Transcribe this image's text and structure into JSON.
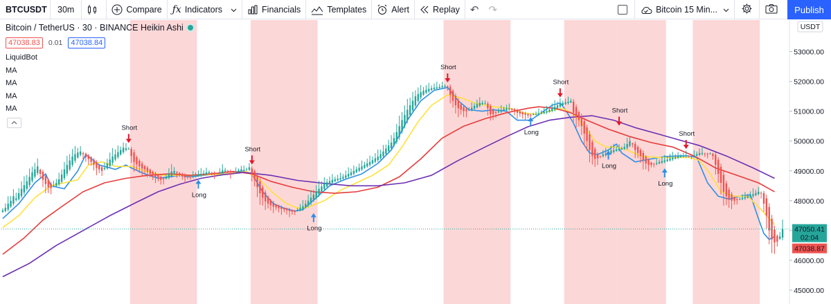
{
  "toolbar": {
    "symbol": "BTCUSDT",
    "interval": "30m",
    "compare_label": "Compare",
    "indicators_label": "Indicators",
    "financials_label": "Financials",
    "templates_label": "Templates",
    "alert_label": "Alert",
    "replay_label": "Replay",
    "layout_name": "Bitcoin 15 Min...",
    "publish_label": "Publish"
  },
  "legend": {
    "title": "Bitcoin / TetherUS · 30 · BINANCE  Heikin Ashi",
    "sell_price": "47038.83",
    "spread": "0.01",
    "buy_price": "47038.84",
    "indicators": [
      "LiquidBot",
      "MA",
      "MA",
      "MA",
      "MA"
    ]
  },
  "colors": {
    "up": "#26a69a",
    "down": "#ef5350",
    "session_shade": "#fcd0d0",
    "ma_fast": "#2e8ee6",
    "ma_mid": "#ffe03a",
    "ma_slow": "#e63b3b",
    "ma_long": "#6b2fb3",
    "long_arrow": "#2e8ee6",
    "short_arrow": "#e0192a"
  },
  "chart_data": {
    "type": "candlestick",
    "title": "Bitcoin / TetherUS · 30 · BINANCE  Heikin Ashi",
    "currency": "USDT",
    "ylim": [
      45000,
      53500
    ],
    "yticks": [
      45000,
      46000,
      47000,
      48000,
      49000,
      50000,
      51000,
      52000,
      53000
    ],
    "grid": false,
    "last_price": "47050.41",
    "countdown": "02:04",
    "marker_price": "47038.87",
    "shaded_sessions": [
      [
        48,
        72
      ],
      [
        93,
        117
      ],
      [
        165,
        189
      ],
      [
        210,
        229
      ],
      [
        230,
        247
      ],
      [
        258,
        282
      ]
    ],
    "ha_closes": [
      47680,
      47760,
      47900,
      48000,
      48150,
      48080,
      48250,
      48400,
      48520,
      48650,
      48800,
      48950,
      49050,
      49150,
      48900,
      48700,
      48560,
      48450,
      48420,
      48500,
      48600,
      48720,
      48880,
      49050,
      49200,
      49350,
      49480,
      49560,
      49620,
      49650,
      49560,
      49450,
      49400,
      49300,
      49200,
      49100,
      49050,
      49000,
      49100,
      49250,
      49380,
      49480,
      49550,
      49630,
      49700,
      49780,
      49760,
      49740,
      49500,
      49300,
      49220,
      49150,
      49080,
      49050,
      48980,
      48900,
      48850,
      48800,
      48750,
      48700,
      48720,
      48800,
      48900,
      48980,
      49000,
      48920,
      48870,
      48830,
      48780,
      48780,
      48800,
      48820,
      48860,
      48880,
      48900,
      48920,
      48950,
      48960,
      48940,
      48900,
      48920,
      48960,
      49020,
      49020,
      48980,
      48940,
      48960,
      48980,
      49020,
      49050,
      49030,
      49050,
      49120,
      48900,
      48700,
      48450,
      48250,
      48100,
      47980,
      47900,
      47850,
      47800,
      47780,
      47750,
      47720,
      47700,
      47680,
      47650,
      47630,
      47650,
      47700,
      47760,
      47820,
      47900,
      48000,
      48100,
      48200,
      48300,
      48400,
      48480,
      48560,
      48620,
      48660,
      48700,
      48720,
      48740,
      48760,
      48800,
      48850,
      48900,
      48950,
      49000,
      49050,
      49100,
      49150,
      49200,
      49250,
      49300,
      49360,
      49420,
      49480,
      49560,
      49650,
      49750,
      49850,
      49950,
      50100,
      50300,
      50500,
      50700,
      50880,
      51050,
      51200,
      51350,
      51500,
      51580,
      51640,
      51690,
      51720,
      51750,
      51770,
      51790,
      51800,
      51820,
      51840,
      51850,
      51800,
      51550,
      51350,
      51200,
      51100,
      51050,
      51000,
      51000,
      51050,
      51120,
      51180,
      51240,
      51280,
      51280,
      51260,
      51100,
      50900,
      50900,
      50950,
      51000,
      51040,
      51080,
      51100,
      51100,
      51050,
      51000,
      50950,
      50920,
      50900,
      50880,
      50860,
      50880,
      50900,
      50900,
      50930,
      50960,
      50980,
      51000,
      51050,
      51100,
      51150,
      51200,
      51250,
      51280,
      51300,
      51320,
      51350,
      50950,
      50800,
      50700,
      50500,
      50250,
      50000,
      49700,
      49500,
      49400,
      49420,
      49480,
      49560,
      49580,
      49620,
      49680,
      49700,
      49720,
      49740,
      49760,
      49800,
      49900,
      50000,
      49900,
      49700,
      49600,
      49500,
      49350,
      49250,
      49200,
      49200,
      49220,
      49260,
      49300,
      49330,
      49350,
      49380,
      49420,
      49440,
      49460,
      49480,
      49500,
      49500,
      49520,
      49500,
      49500,
      49520,
      49560,
      49600,
      49600,
      49560,
      49560,
      49580,
      49500,
      49200,
      48900,
      48600,
      48300,
      48150,
      48050,
      48000,
      48000,
      48020,
      48060,
      48100,
      48120,
      48150,
      48180,
      48220,
      48260,
      48300,
      48250,
      47900,
      47500,
      47000,
      46700,
      46600,
      46620,
      46800,
      47050
    ],
    "series": [
      {
        "name": "MA",
        "color": "#2e8ee6",
        "values": [
          [
            0,
            47400
          ],
          [
            6,
            47900
          ],
          [
            12,
            48600
          ],
          [
            16,
            48900
          ],
          [
            18,
            48500
          ],
          [
            23,
            48400
          ],
          [
            28,
            49000
          ],
          [
            31,
            49550
          ],
          [
            36,
            49200
          ],
          [
            42,
            49050
          ],
          [
            46,
            49200
          ],
          [
            48,
            49100
          ],
          [
            53,
            48900
          ],
          [
            58,
            48750
          ],
          [
            62,
            48800
          ],
          [
            66,
            48850
          ],
          [
            70,
            48800
          ],
          [
            75,
            48850
          ],
          [
            80,
            48900
          ],
          [
            85,
            48900
          ],
          [
            90,
            49000
          ],
          [
            93,
            48900
          ],
          [
            97,
            48300
          ],
          [
            101,
            47900
          ],
          [
            105,
            47750
          ],
          [
            109,
            47650
          ],
          [
            112,
            47700
          ],
          [
            117,
            48100
          ],
          [
            122,
            48500
          ],
          [
            128,
            48720
          ],
          [
            134,
            48900
          ],
          [
            140,
            49250
          ],
          [
            145,
            49700
          ],
          [
            151,
            50700
          ],
          [
            156,
            51350
          ],
          [
            161,
            51700
          ],
          [
            166,
            51800
          ],
          [
            170,
            51350
          ],
          [
            174,
            51050
          ],
          [
            179,
            51000
          ],
          [
            183,
            51050
          ],
          [
            188,
            51000
          ],
          [
            192,
            50700
          ],
          [
            197,
            50700
          ],
          [
            201,
            50950
          ],
          [
            205,
            51200
          ],
          [
            208,
            51280
          ],
          [
            210,
            51050
          ],
          [
            213,
            50600
          ],
          [
            216,
            50000
          ],
          [
            219,
            49600
          ],
          [
            222,
            49550
          ],
          [
            226,
            49700
          ],
          [
            229,
            49900
          ],
          [
            231,
            49600
          ],
          [
            236,
            49300
          ],
          [
            242,
            49400
          ],
          [
            247,
            49480
          ],
          [
            252,
            49500
          ],
          [
            256,
            49500
          ],
          [
            259,
            49450
          ],
          [
            263,
            48600
          ],
          [
            267,
            48150
          ],
          [
            271,
            48050
          ],
          [
            275,
            48150
          ],
          [
            279,
            48200
          ],
          [
            282,
            47400
          ],
          [
            284,
            46900
          ],
          [
            286,
            46700
          ],
          [
            288,
            46800
          ]
        ]
      },
      {
        "name": "MA",
        "color": "#ffe03a",
        "values": [
          [
            0,
            47100
          ],
          [
            6,
            47500
          ],
          [
            12,
            48100
          ],
          [
            18,
            48500
          ],
          [
            23,
            48600
          ],
          [
            28,
            48700
          ],
          [
            32,
            49200
          ],
          [
            37,
            49300
          ],
          [
            42,
            49150
          ],
          [
            48,
            49150
          ],
          [
            53,
            49000
          ],
          [
            60,
            48850
          ],
          [
            68,
            48850
          ],
          [
            76,
            48870
          ],
          [
            84,
            48900
          ],
          [
            91,
            48980
          ],
          [
            96,
            48700
          ],
          [
            101,
            48250
          ],
          [
            106,
            47900
          ],
          [
            110,
            47750
          ],
          [
            114,
            47780
          ],
          [
            120,
            48000
          ],
          [
            126,
            48350
          ],
          [
            132,
            48600
          ],
          [
            138,
            48850
          ],
          [
            144,
            49200
          ],
          [
            149,
            49800
          ],
          [
            155,
            50650
          ],
          [
            160,
            51200
          ],
          [
            166,
            51550
          ],
          [
            171,
            51450
          ],
          [
            177,
            51250
          ],
          [
            183,
            51150
          ],
          [
            189,
            51100
          ],
          [
            194,
            50950
          ],
          [
            199,
            50900
          ],
          [
            204,
            51000
          ],
          [
            209,
            51100
          ],
          [
            213,
            50900
          ],
          [
            217,
            50500
          ],
          [
            221,
            50000
          ],
          [
            225,
            49800
          ],
          [
            229,
            49800
          ],
          [
            233,
            49700
          ],
          [
            238,
            49500
          ],
          [
            244,
            49450
          ],
          [
            250,
            49450
          ],
          [
            256,
            49450
          ],
          [
            260,
            49350
          ],
          [
            264,
            48900
          ],
          [
            268,
            48300
          ],
          [
            273,
            48150
          ],
          [
            278,
            48150
          ],
          [
            283,
            47700
          ],
          [
            288,
            47200
          ]
        ]
      },
      {
        "name": "MA",
        "color": "#e63b3b",
        "values": [
          [
            0,
            46200
          ],
          [
            8,
            46750
          ],
          [
            15,
            47350
          ],
          [
            22,
            47800
          ],
          [
            30,
            48300
          ],
          [
            38,
            48600
          ],
          [
            46,
            48750
          ],
          [
            54,
            48850
          ],
          [
            62,
            48900
          ],
          [
            70,
            48850
          ],
          [
            78,
            48900
          ],
          [
            86,
            48980
          ],
          [
            93,
            48900
          ],
          [
            100,
            48650
          ],
          [
            108,
            48450
          ],
          [
            116,
            48300
          ],
          [
            124,
            48250
          ],
          [
            132,
            48300
          ],
          [
            140,
            48450
          ],
          [
            148,
            48800
          ],
          [
            156,
            49400
          ],
          [
            164,
            50100
          ],
          [
            172,
            50500
          ],
          [
            180,
            50750
          ],
          [
            188,
            50950
          ],
          [
            196,
            51100
          ],
          [
            200,
            51150
          ],
          [
            206,
            51100
          ],
          [
            212,
            50950
          ],
          [
            218,
            50700
          ],
          [
            226,
            50400
          ],
          [
            234,
            50150
          ],
          [
            242,
            49950
          ],
          [
            250,
            49800
          ],
          [
            258,
            49500
          ],
          [
            266,
            49100
          ],
          [
            274,
            48850
          ],
          [
            282,
            48600
          ],
          [
            288,
            48300
          ]
        ]
      },
      {
        "name": "MA",
        "color": "#6b2fb3",
        "values": [
          [
            0,
            45450
          ],
          [
            10,
            45900
          ],
          [
            20,
            46500
          ],
          [
            30,
            47000
          ],
          [
            40,
            47500
          ],
          [
            50,
            47950
          ],
          [
            58,
            48300
          ],
          [
            66,
            48550
          ],
          [
            74,
            48750
          ],
          [
            82,
            48870
          ],
          [
            90,
            48950
          ],
          [
            100,
            48850
          ],
          [
            110,
            48680
          ],
          [
            120,
            48580
          ],
          [
            130,
            48500
          ],
          [
            140,
            48500
          ],
          [
            150,
            48600
          ],
          [
            160,
            48850
          ],
          [
            170,
            49350
          ],
          [
            180,
            49800
          ],
          [
            188,
            50150
          ],
          [
            196,
            50480
          ],
          [
            204,
            50700
          ],
          [
            212,
            50800
          ],
          [
            220,
            50850
          ],
          [
            228,
            50700
          ],
          [
            236,
            50450
          ],
          [
            244,
            50250
          ],
          [
            252,
            50050
          ],
          [
            260,
            49850
          ],
          [
            270,
            49500
          ],
          [
            280,
            49100
          ],
          [
            288,
            48750
          ]
        ]
      }
    ],
    "signals": [
      {
        "type": "Short",
        "index": 47,
        "price": 49820
      },
      {
        "type": "Long",
        "index": 73,
        "price": 48820
      },
      {
        "type": "Short",
        "index": 93,
        "price": 49100
      },
      {
        "type": "Long",
        "index": 116,
        "price": 47700
      },
      {
        "type": "Short",
        "index": 166,
        "price": 51850
      },
      {
        "type": "Long",
        "index": 197,
        "price": 50920
      },
      {
        "type": "Short",
        "index": 208,
        "price": 51350
      },
      {
        "type": "Long",
        "index": 226,
        "price": 49800
      },
      {
        "type": "Short",
        "index": 230,
        "price": 50400
      },
      {
        "type": "Long",
        "index": 247,
        "price": 49200
      },
      {
        "type": "Short",
        "index": 255,
        "price": 49620
      }
    ]
  }
}
